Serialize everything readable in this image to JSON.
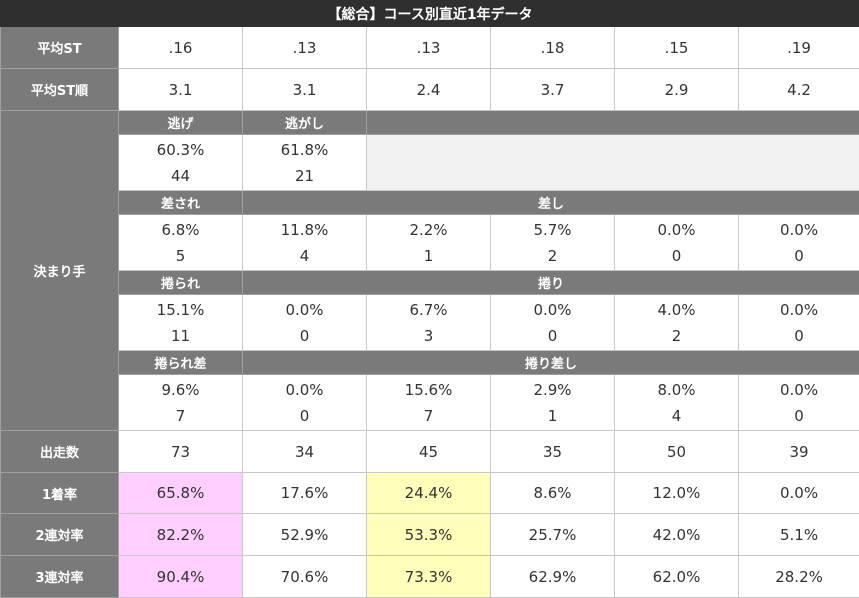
{
  "title": "【総合】コース別直近1年データ",
  "avg_st": {
    "label": "平均ST",
    "values": [
      ".16",
      ".13",
      ".13",
      ".18",
      ".15",
      ".19"
    ]
  },
  "avg_st_rank": {
    "label": "平均ST順",
    "values": [
      "3.1",
      "3.1",
      "2.4",
      "3.7",
      "2.9",
      "4.2"
    ]
  },
  "kimarite": {
    "label": "決まり手",
    "nige": {
      "label": "逃げ",
      "rate": "60.3%",
      "count": "44"
    },
    "nigashi": {
      "label": "逃がし",
      "rate": "61.8%",
      "count": "21"
    },
    "sasare": {
      "label": "差され",
      "rate": "6.8%",
      "count": "5"
    },
    "sashi": {
      "label": "差し",
      "rates": [
        "11.8%",
        "2.2%",
        "5.7%",
        "0.0%",
        "0.0%"
      ],
      "counts": [
        "4",
        "1",
        "2",
        "0",
        "0"
      ]
    },
    "makurare": {
      "label": "捲られ",
      "rate": "15.1%",
      "count": "11"
    },
    "makuri": {
      "label": "捲り",
      "rates": [
        "0.0%",
        "6.7%",
        "0.0%",
        "4.0%",
        "0.0%"
      ],
      "counts": [
        "0",
        "3",
        "0",
        "2",
        "0"
      ]
    },
    "makurare_sashi": {
      "label": "捲られ差",
      "rate": "9.6%",
      "count": "7"
    },
    "makuri_sashi": {
      "label": "捲り差し",
      "rates": [
        "0.0%",
        "15.6%",
        "2.9%",
        "8.0%",
        "0.0%"
      ],
      "counts": [
        "0",
        "7",
        "1",
        "4",
        "0"
      ]
    }
  },
  "starts": {
    "label": "出走数",
    "values": [
      "73",
      "34",
      "45",
      "35",
      "50",
      "39"
    ]
  },
  "win_rate": {
    "label": "1着率",
    "values": [
      "65.8%",
      "17.6%",
      "24.4%",
      "8.6%",
      "12.0%",
      "0.0%"
    ]
  },
  "quinella_rate": {
    "label": "2連対率",
    "values": [
      "82.2%",
      "52.9%",
      "53.3%",
      "25.7%",
      "42.0%",
      "5.1%"
    ]
  },
  "trio_rate": {
    "label": "3連対率",
    "values": [
      "90.4%",
      "70.6%",
      "73.3%",
      "62.9%",
      "62.0%",
      "28.2%"
    ]
  },
  "highlight_colors": {
    "first": "#ffd0ff",
    "third": "#ffffbb"
  }
}
